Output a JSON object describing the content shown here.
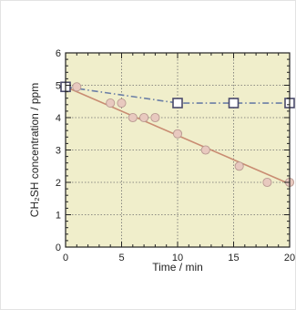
{
  "chart_data": {
    "type": "line",
    "xlabel": "Time / min",
    "ylabel": "CH₂SH concentration / ppm",
    "xlim": [
      0,
      20
    ],
    "ylim": [
      0,
      6
    ],
    "xticks": [
      0,
      5,
      10,
      15,
      20
    ],
    "yticks": [
      0,
      1,
      2,
      3,
      4,
      5,
      6
    ],
    "grid": true,
    "background_color": "#f0eecb",
    "series": [
      {
        "marker": "square",
        "line_style": "dash-dot",
        "line_color": "#6b7fa6",
        "marker_color": "#4a4a6a",
        "x": [
          0,
          10,
          15,
          20
        ],
        "y": [
          4.95,
          4.45,
          4.45,
          4.45
        ]
      },
      {
        "marker": "circle",
        "line_style": "solid",
        "line_color": "#c98c72",
        "marker_color": "#e8c9bf",
        "x": [
          1,
          4,
          5,
          6,
          7,
          8,
          10,
          12.5,
          15.5,
          18,
          20
        ],
        "y": [
          4.95,
          4.45,
          4.45,
          4.0,
          4.0,
          4.0,
          3.5,
          3.0,
          2.5,
          2.0,
          2.0
        ]
      },
      {
        "marker": "none",
        "line_style": "solid",
        "line_color": "#c98c72",
        "fit": true,
        "x": [
          0,
          20
        ],
        "y": [
          4.95,
          1.95
        ]
      }
    ]
  }
}
